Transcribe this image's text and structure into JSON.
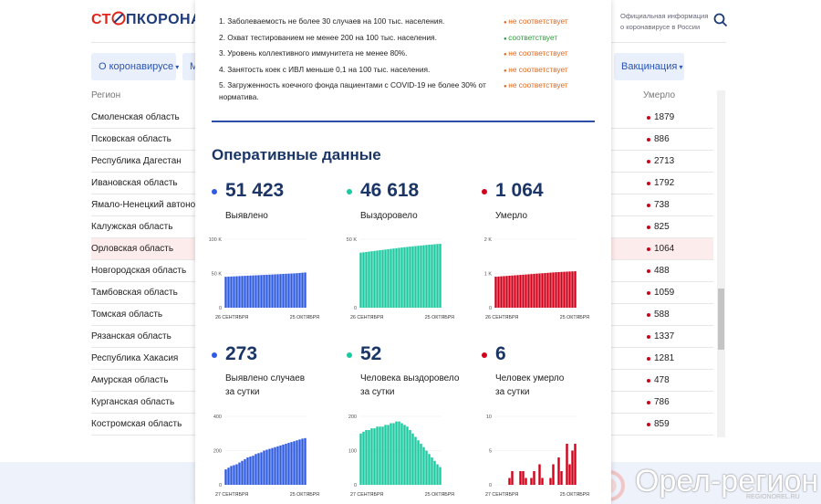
{
  "header": {
    "logo_red": "СТ",
    "logo_blue": "ПКОРОНАВИРУС",
    "info": [
      "Официальная информация",
      "о коронавирусе в России"
    ]
  },
  "nav": [
    "О коронавирусе",
    "М",
    "Вакцинация"
  ],
  "table": {
    "columns": [
      "Регион",
      "Умерло"
    ],
    "highlight": 6,
    "rows": [
      [
        "Смоленская область",
        1879
      ],
      [
        "Псковская область",
        886
      ],
      [
        "Республика Дагестан",
        2713
      ],
      [
        "Ивановская область",
        1792
      ],
      [
        "Ямало-Ненецкий автономный округ",
        738
      ],
      [
        "Калужская область",
        825
      ],
      [
        "Орловская область",
        1064
      ],
      [
        "Новгородская область",
        488
      ],
      [
        "Тамбовская область",
        1059
      ],
      [
        "Томская область",
        588
      ],
      [
        "Рязанская область",
        1337
      ],
      [
        "Республика Хакасия",
        1281
      ],
      [
        "Амурская область",
        478
      ],
      [
        "Курганская область",
        786
      ],
      [
        "Костромская область",
        859
      ]
    ]
  },
  "popup": {
    "criteria": [
      {
        "text": "1. Заболеваемость не более 30 случаев на 100 тыс. населения.",
        "status": "не соответствует",
        "met": false
      },
      {
        "text": "2. Охват тестированием не менее 200 на 100 тыс. населения.",
        "status": "соответствует",
        "met": true
      },
      {
        "text": "3. Уровень коллективного иммунитета не менее 80%.",
        "status": "не соответствует",
        "met": false
      },
      {
        "text": "4. Занятость коек с ИВЛ меньше 0,1 на 100 тыс. населения.",
        "status": "не соответствует",
        "met": false
      },
      {
        "text": "5. Загруженность коечного фонда пациентами с COVID-19 не более 30% от норматива.",
        "status": "не соответствует",
        "met": false
      }
    ],
    "heading": "Оперативные данные",
    "cards": [
      {
        "value": "51 423",
        "label": [
          "Выявлено"
        ],
        "color": "#2f5be0",
        "chart": {
          "type": "bar",
          "ylim": [
            0,
            100000
          ],
          "yticks": [
            0,
            {
              "value": 50000,
              "label": "50 K"
            },
            {
              "value": 100000,
              "label": "100 K"
            }
          ],
          "xticks": [
            "26 СЕНТЯБРЯ",
            "25 ОКТЯБРЯ"
          ],
          "values": [
            45100,
            45300,
            45500,
            45700,
            45900,
            46100,
            46300,
            46500,
            46700,
            46900,
            47100,
            47300,
            47500,
            47700,
            47900,
            48100,
            48300,
            48500,
            48700,
            48900,
            49100,
            49300,
            49500,
            49700,
            49900,
            50100,
            50400,
            50700,
            51150,
            51423
          ]
        }
      },
      {
        "value": "46 618",
        "label": [
          "Выздоровело"
        ],
        "color": "#1cc9a0",
        "chart": {
          "type": "bar",
          "ylim": [
            0,
            50000
          ],
          "yticks": [
            0,
            {
              "value": 50000,
              "label": "50 K"
            }
          ],
          "xticks": [
            "26 СЕНТЯБРЯ",
            "25 ОКТЯБРЯ"
          ],
          "values": [
            40200,
            40450,
            40700,
            40950,
            41200,
            41450,
            41700,
            41950,
            42200,
            42450,
            42700,
            42950,
            43200,
            43450,
            43700,
            43950,
            44200,
            44400,
            44600,
            44800,
            45000,
            45200,
            45400,
            45600,
            45800,
            46000,
            46150,
            46300,
            46500,
            46618
          ]
        }
      },
      {
        "value": "1 064",
        "label": [
          "Умерло"
        ],
        "color": "#d0021b",
        "chart": {
          "type": "bar",
          "ylim": [
            0,
            2000
          ],
          "yticks": [
            0,
            {
              "value": 1000,
              "label": "1 K"
            },
            {
              "value": 2000,
              "label": "2 K"
            }
          ],
          "xticks": [
            "26 СЕНТЯБРЯ",
            "25 ОКТЯБРЯ"
          ],
          "values": [
            905,
            910,
            916,
            922,
            928,
            934,
            940,
            946,
            952,
            958,
            964,
            970,
            976,
            982,
            988,
            994,
            1000,
            1006,
            1012,
            1018,
            1024,
            1030,
            1035,
            1040,
            1045,
            1050,
            1054,
            1058,
            1061,
            1064
          ]
        }
      },
      {
        "value": "273",
        "label": [
          "Выявлено случаев",
          "за сутки"
        ],
        "color": "#2f5be0",
        "chart": {
          "type": "bar",
          "ylim": [
            0,
            400
          ],
          "yticks": [
            0,
            200,
            400
          ],
          "xticks": [
            "27 СЕНТЯБРЯ",
            "25 ОКТЯБРЯ"
          ],
          "values": [
            90,
            100,
            110,
            115,
            120,
            130,
            140,
            150,
            160,
            165,
            170,
            180,
            185,
            190,
            200,
            205,
            210,
            215,
            220,
            225,
            230,
            235,
            240,
            245,
            250,
            255,
            260,
            265,
            270,
            273
          ]
        }
      },
      {
        "value": "52",
        "label": [
          "Человека выздоровело",
          "за сутки"
        ],
        "color": "#1cc9a0",
        "chart": {
          "type": "bar",
          "ylim": [
            0,
            200
          ],
          "yticks": [
            0,
            100,
            200
          ],
          "xticks": [
            "27 СЕНТЯБРЯ",
            "25 ОКТЯБРЯ"
          ],
          "values": [
            150,
            155,
            160,
            160,
            165,
            165,
            170,
            170,
            170,
            175,
            175,
            180,
            180,
            185,
            185,
            180,
            175,
            170,
            160,
            150,
            140,
            130,
            120,
            110,
            100,
            90,
            80,
            70,
            60,
            52
          ]
        }
      },
      {
        "value": "6",
        "label": [
          "Человек умерло",
          "за сутки"
        ],
        "color": "#d0021b",
        "chart": {
          "type": "bar",
          "ylim": [
            0,
            10
          ],
          "yticks": [
            0,
            5,
            10
          ],
          "xticks": [
            "27 СЕНТЯБРЯ",
            "25 ОКТЯБРЯ"
          ],
          "values": [
            0,
            0,
            0,
            0,
            0,
            1,
            2,
            0,
            0,
            2,
            2,
            1,
            0,
            1,
            2,
            0,
            3,
            1,
            0,
            0,
            1,
            3,
            0,
            4,
            2,
            0,
            6,
            3,
            5,
            6
          ]
        }
      }
    ]
  },
  "watermark": {
    "title": "Орел-регион",
    "site": "REGIONOREL.RU"
  }
}
